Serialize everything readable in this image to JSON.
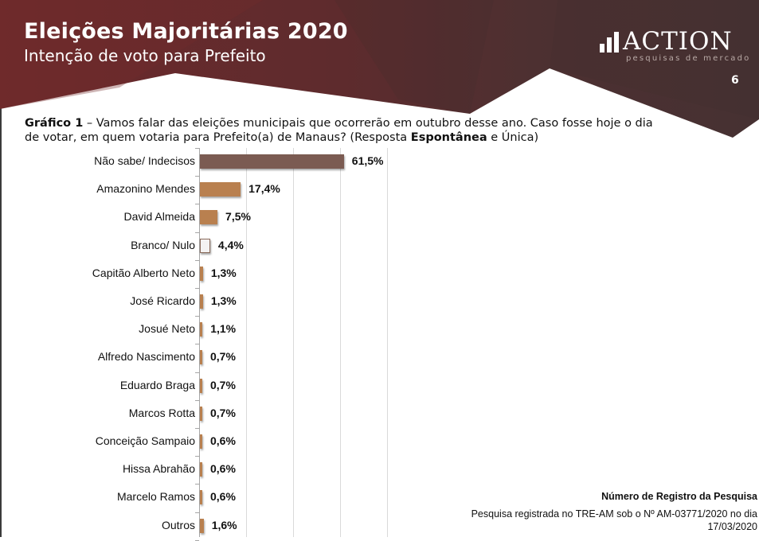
{
  "header": {
    "title": "Eleições Majoritárias 2020",
    "subtitle": "Intenção de voto para Prefeito",
    "logo_text": "ACTION",
    "logo_tagline": "pesquisas de mercado",
    "page_number": "6",
    "colors": {
      "header_left": "#6b2a2c",
      "header_right": "#4a3132"
    }
  },
  "question": {
    "label": "Gráfico 1",
    "text_1": " – Vamos falar das eleições municipais que ocorrerão em outubro desse ano. Caso fosse hoje o dia de votar, em quem votaria para Prefeito(a) de Manaus? (Resposta ",
    "bold_2": "Espontânea",
    "text_3": " e Única)"
  },
  "chart_data": {
    "type": "bar",
    "orientation": "horizontal",
    "title": "Gráfico 1 – Intenção de voto espontânea para Prefeito(a) de Manaus",
    "xlabel": "",
    "ylabel": "",
    "xlim": [
      0,
      100
    ],
    "grid": true,
    "grid_ticks": [
      20,
      40,
      60,
      80
    ],
    "categories": [
      "Não sabe/ Indecisos",
      "Amazonino Mendes",
      "David Almeida",
      "Branco/ Nulo",
      "Capitão Alberto Neto",
      "José Ricardo",
      "Josué Neto",
      "Alfredo Nascimento",
      "Eduardo Braga",
      "Marcos Rotta",
      "Conceição Sampaio",
      "Hissa Abrahão",
      "Marcelo Ramos",
      "Outros"
    ],
    "values": [
      61.5,
      17.4,
      7.5,
      4.4,
      1.3,
      1.3,
      1.1,
      0.7,
      0.7,
      0.7,
      0.6,
      0.6,
      0.6,
      1.6
    ],
    "value_labels": [
      "61,5%",
      "17,4%",
      "7,5%",
      "4,4%",
      "1,3%",
      "1,3%",
      "1,1%",
      "0,7%",
      "0,7%",
      "0,7%",
      "0,6%",
      "0,6%",
      "0,6%",
      "1,6%"
    ],
    "bar_colors": [
      "#7b5b52",
      "#b9804f",
      "#b9804f",
      "#f4f2f2",
      "#b9804f",
      "#b9804f",
      "#b9804f",
      "#b9804f",
      "#b9804f",
      "#b9804f",
      "#b9804f",
      "#b9804f",
      "#b9804f",
      "#b9804f"
    ]
  },
  "registration": {
    "title": "Número de Registro da Pesquisa",
    "text": "Pesquisa registrada no TRE-AM sob o Nº AM-03771/2020 no dia 17/03/2020"
  }
}
